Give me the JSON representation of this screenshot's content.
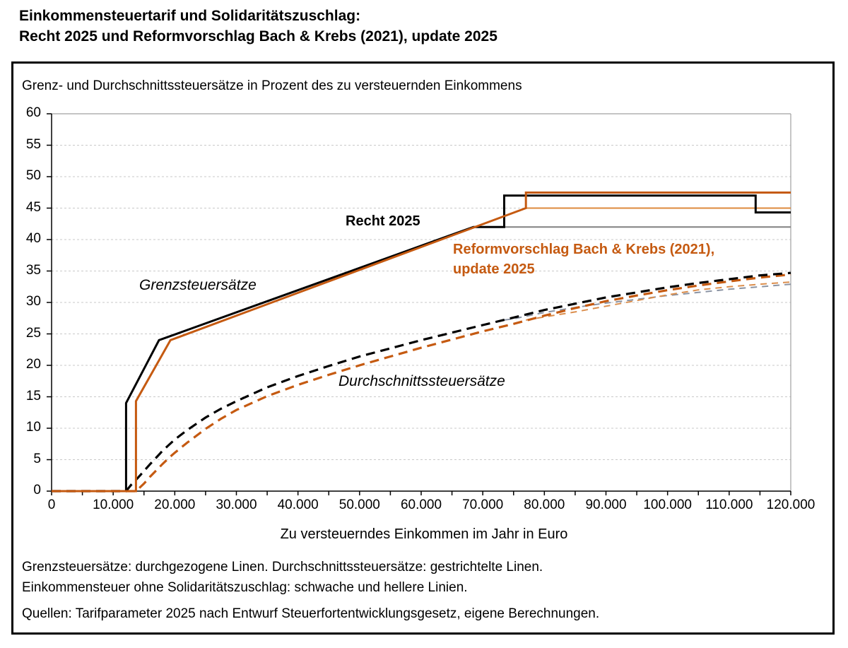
{
  "title": {
    "line1": "Einkommensteuertarif und Solidaritätszuschlag:",
    "line2": "Recht 2025 und Reformvorschlag Bach & Krebs (2021), update 2025"
  },
  "panel": {
    "subtitle": "Grenz- und Durchschnittssteuersätze in Prozent des zu versteuernden Einkommens",
    "note_line1": "Grenzsteuersätze: durchgezogene Linen. Durchschnittssteuersätze: gestrichtelte Linen.",
    "note_line2": "Einkommensteuer ohne Solidaritätszuschlag: schwache und hellere Linien.",
    "source": "Quellen: Tarifparameter 2025 nach Entwurf Steuerfortentwicklungsgesetz, eigene Berechnungen."
  },
  "annotations": {
    "recht": "Recht 2025",
    "reform_line1": "Reformvorschlag Bach & Krebs (2021),",
    "reform_line2": "update 2025",
    "grenz": "Grenzsteuersätze",
    "durchschnitt": "Durchschnittssteuersätze"
  },
  "colors": {
    "black": "#000000",
    "orange": "#C55A11",
    "gray_solid": "#808080",
    "light_orange_solid": "#DE8A3C",
    "gray_dashed": "#8A93A3",
    "light_orange_dashed": "#DB8E4D",
    "grid": "#C9C9C9",
    "frame": "#A0A0A0"
  },
  "chart_data": {
    "type": "line",
    "title": "Grenz- und Durchschnittssteuersätze in Prozent des zu versteuernden Einkommens",
    "xlabel": "Zu versteuerndes Einkommen im Jahr in Euro",
    "ylabel": "Grenz- und Durchschnittssteuersätze in Prozent",
    "xlim": [
      0,
      120000
    ],
    "ylim": [
      0,
      60
    ],
    "grid": "horizontal",
    "legend_position": "none",
    "x_minor_step": 5000,
    "x_major_ticks": [
      {
        "v": 0,
        "label": "0"
      },
      {
        "v": 10000,
        "label": "10.000"
      },
      {
        "v": 20000,
        "label": "20.000"
      },
      {
        "v": 30000,
        "label": "30.000"
      },
      {
        "v": 40000,
        "label": "40.000"
      },
      {
        "v": 50000,
        "label": "50.000"
      },
      {
        "v": 60000,
        "label": "60.000"
      },
      {
        "v": 70000,
        "label": "70.000"
      },
      {
        "v": 80000,
        "label": "80.000"
      },
      {
        "v": 90000,
        "label": "90.000"
      },
      {
        "v": 100000,
        "label": "100.000"
      },
      {
        "v": 110000,
        "label": "110.000"
      },
      {
        "v": 120000,
        "label": "120.000"
      }
    ],
    "y_ticks": [
      {
        "v": 0,
        "label": "0"
      },
      {
        "v": 5,
        "label": "5"
      },
      {
        "v": 10,
        "label": "10"
      },
      {
        "v": 15,
        "label": "15"
      },
      {
        "v": 20,
        "label": "20"
      },
      {
        "v": 25,
        "label": "25"
      },
      {
        "v": 30,
        "label": "30"
      },
      {
        "v": 35,
        "label": "35"
      },
      {
        "v": 40,
        "label": "40"
      },
      {
        "v": 45,
        "label": "45"
      },
      {
        "v": 50,
        "label": "50"
      },
      {
        "v": 55,
        "label": "55"
      },
      {
        "v": 60,
        "label": "60"
      }
    ],
    "series": [
      {
        "id": "recht2025-grenzsteuersatz-ohne-soli",
        "name": "Recht 2025 Grenzsteuersatz ohne Solidaritätszuschlag",
        "color": "#808080",
        "width": 2,
        "dash": null,
        "points": [
          [
            68480,
            42
          ],
          [
            120000,
            42
          ]
        ]
      },
      {
        "id": "reform-grenzsteuersatz-ohne-soli",
        "name": "Reformvorschlag Grenzsteuersatz ohne Solidaritätszuschlag",
        "color": "#DE8A3C",
        "width": 2,
        "dash": null,
        "points": [
          [
            77000,
            45
          ],
          [
            120000,
            45
          ]
        ]
      },
      {
        "id": "recht2025-durchschnittssteuersatz-ohne-soli",
        "name": "Recht 2025 Durchschnittssteuersatz ohne Solidaritätszuschlag",
        "color": "#8A93A3",
        "width": 2,
        "dash": "9 7",
        "points": [
          [
            73481,
            27.2
          ],
          [
            75000,
            27.4
          ],
          [
            80000,
            28.4
          ],
          [
            85000,
            29.2
          ],
          [
            90000,
            29.9
          ],
          [
            95000,
            30.5
          ],
          [
            100000,
            31.1
          ],
          [
            105000,
            31.6
          ],
          [
            110000,
            32.1
          ],
          [
            115000,
            32.5
          ],
          [
            120000,
            32.9
          ]
        ]
      },
      {
        "id": "reform-durchschnittssteuersatz-ohne-soli",
        "name": "Reformvorschlag Durchschnittssteuersatz ohne Solidaritätszuschlag",
        "color": "#DB8E4D",
        "width": 2,
        "dash": "9 7",
        "points": [
          [
            77000,
            27.2
          ],
          [
            80000,
            27.7
          ],
          [
            85000,
            28.5
          ],
          [
            90000,
            29.4
          ],
          [
            95000,
            30.3
          ],
          [
            100000,
            31.2
          ],
          [
            105000,
            32.0
          ],
          [
            110000,
            32.5
          ],
          [
            115000,
            32.9
          ],
          [
            120000,
            33.25
          ]
        ]
      },
      {
        "id": "reform-durchschnittssteuersatz",
        "name": "Reformvorschlag Durchschnittssteuersatz (inkl. Solidaritätszuschlag)",
        "color": "#C55A11",
        "width": 3.2,
        "dash": "13 8",
        "points": [
          [
            0,
            0
          ],
          [
            13700,
            0
          ],
          [
            15000,
            1.2
          ],
          [
            16000,
            2.3
          ],
          [
            17400,
            3.7
          ],
          [
            18000,
            4.3
          ],
          [
            19300,
            5.5
          ],
          [
            20000,
            6.1
          ],
          [
            22000,
            7.7
          ],
          [
            25000,
            9.9
          ],
          [
            27500,
            11.5
          ],
          [
            30000,
            12.9
          ],
          [
            35000,
            15.1
          ],
          [
            40000,
            16.9
          ],
          [
            45000,
            18.5
          ],
          [
            50000,
            20.0
          ],
          [
            55000,
            21.4
          ],
          [
            60000,
            22.8
          ],
          [
            65000,
            24.1
          ],
          [
            70000,
            25.4
          ],
          [
            75000,
            26.6
          ],
          [
            80000,
            27.9
          ],
          [
            85000,
            29.1
          ],
          [
            90000,
            30.2
          ],
          [
            95000,
            31.1
          ],
          [
            100000,
            31.95
          ],
          [
            105000,
            32.7
          ],
          [
            110000,
            33.35
          ],
          [
            115000,
            33.95
          ],
          [
            120000,
            34.45
          ]
        ]
      },
      {
        "id": "recht2025-durchschnittssteuersatz",
        "name": "Recht 2025 Durchschnittssteuersatz (inkl. Solidaritätszuschlag)",
        "color": "#000000",
        "width": 3.2,
        "dash": "13 8",
        "points": [
          [
            0,
            0
          ],
          [
            12096,
            0
          ],
          [
            13000,
            1.1
          ],
          [
            14000,
            2.1
          ],
          [
            15000,
            3.2
          ],
          [
            16000,
            4.3
          ],
          [
            17443,
            5.8
          ],
          [
            18000,
            6.4
          ],
          [
            19000,
            7.3
          ],
          [
            20000,
            8.2
          ],
          [
            22000,
            9.7
          ],
          [
            25000,
            11.7
          ],
          [
            27500,
            13.1
          ],
          [
            30000,
            14.3
          ],
          [
            35000,
            16.5
          ],
          [
            40000,
            18.3
          ],
          [
            45000,
            19.9
          ],
          [
            50000,
            21.4
          ],
          [
            55000,
            22.7
          ],
          [
            60000,
            24.0
          ],
          [
            65000,
            25.2
          ],
          [
            70000,
            26.4
          ],
          [
            75000,
            27.6
          ],
          [
            80000,
            28.8
          ],
          [
            85000,
            29.8
          ],
          [
            90000,
            30.8
          ],
          [
            95000,
            31.6
          ],
          [
            100000,
            32.4
          ],
          [
            105000,
            33.1
          ],
          [
            110000,
            33.7
          ],
          [
            115000,
            34.3
          ],
          [
            120000,
            34.7
          ]
        ]
      },
      {
        "id": "recht2025-grenzsteuersatz",
        "name": "Recht 2025 Grenzsteuersatz (inkl. Solidaritätszuschlag)",
        "color": "#000000",
        "width": 3,
        "dash": null,
        "points": [
          [
            0,
            0
          ],
          [
            12096,
            0
          ],
          [
            12096,
            14
          ],
          [
            17443,
            24
          ],
          [
            68480,
            42
          ],
          [
            73480,
            42
          ],
          [
            73480,
            47.0
          ],
          [
            114300,
            47.0
          ],
          [
            114300,
            44.31
          ],
          [
            120000,
            44.31
          ]
        ]
      },
      {
        "id": "reform-grenzsteuersatz",
        "name": "Reformvorschlag Grenzsteuersatz (inkl. Solidaritätszuschlag)",
        "color": "#C55A11",
        "width": 3,
        "dash": null,
        "points": [
          [
            0,
            0
          ],
          [
            13700,
            0
          ],
          [
            13700,
            14.3
          ],
          [
            19300,
            24
          ],
          [
            77000,
            45
          ],
          [
            77000,
            47.475
          ],
          [
            120000,
            47.475
          ]
        ]
      }
    ]
  }
}
